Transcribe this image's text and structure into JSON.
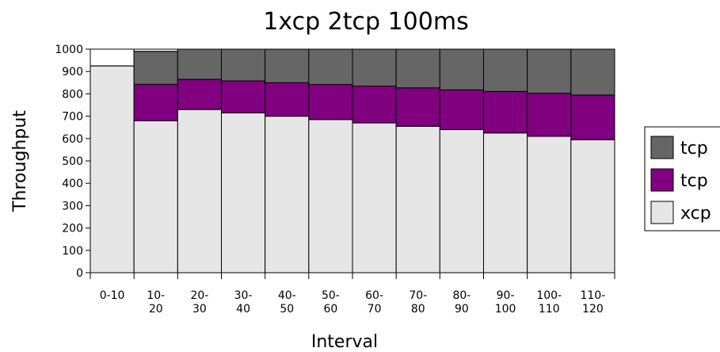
{
  "chart_data": {
    "type": "bar",
    "stacked": true,
    "title": "1xcp 2tcp 100ms",
    "xlabel": "Interval",
    "ylabel": "Throughput",
    "ylim": [
      0,
      1000
    ],
    "yticks": [
      0,
      100,
      200,
      300,
      400,
      500,
      600,
      700,
      800,
      900,
      1000
    ],
    "grid": false,
    "legend_position": "right",
    "categories": [
      [
        "0-10"
      ],
      [
        "10-",
        "20"
      ],
      [
        "20-",
        "30"
      ],
      [
        "30-",
        "40"
      ],
      [
        "40-",
        "50"
      ],
      [
        "50-",
        "60"
      ],
      [
        "60-",
        "70"
      ],
      [
        "70-",
        "80"
      ],
      [
        "80-",
        "90"
      ],
      [
        "90-",
        "100"
      ],
      [
        "100-",
        "110"
      ],
      [
        "110-",
        "120"
      ]
    ],
    "series": [
      {
        "name": "xcp",
        "color": "#e6e6e6",
        "values": [
          925,
          680,
          730,
          715,
          700,
          685,
          670,
          655,
          640,
          625,
          610,
          595
        ]
      },
      {
        "name": "tcp",
        "color": "#800080",
        "values": [
          0,
          163,
          135,
          143,
          150,
          157,
          165,
          172,
          178,
          186,
          193,
          200
        ]
      },
      {
        "name": "tcp",
        "color": "#666666",
        "values": [
          0,
          147,
          135,
          142,
          150,
          158,
          165,
          173,
          182,
          189,
          197,
          205
        ]
      }
    ]
  }
}
